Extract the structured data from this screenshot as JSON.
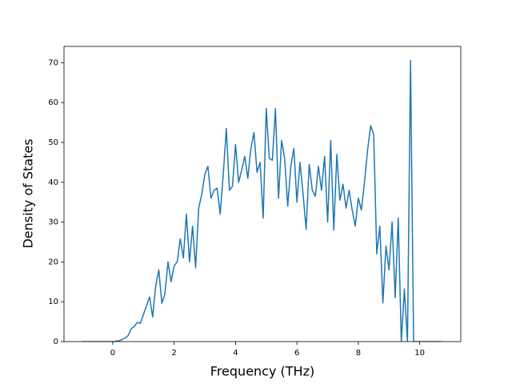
{
  "chart_data": {
    "type": "line",
    "x_label": "Frequency (THz)",
    "y_label": "Density of States",
    "x": [
      -1.0,
      -0.9,
      -0.8,
      -0.7,
      -0.6,
      -0.5,
      -0.4,
      -0.3,
      -0.2,
      -0.1,
      0.0,
      0.1,
      0.2,
      0.3,
      0.4,
      0.5,
      0.6,
      0.7,
      0.8,
      0.9,
      1.0,
      1.1,
      1.2,
      1.3,
      1.4,
      1.5,
      1.6,
      1.7,
      1.8,
      1.9,
      2.0,
      2.1,
      2.2,
      2.3,
      2.4,
      2.5,
      2.6,
      2.7,
      2.8,
      2.9,
      3.0,
      3.1,
      3.2,
      3.3,
      3.4,
      3.5,
      3.6,
      3.7,
      3.8,
      3.9,
      4.0,
      4.1,
      4.2,
      4.3,
      4.4,
      4.5,
      4.6,
      4.7,
      4.8,
      4.9,
      5.0,
      5.1,
      5.2,
      5.3,
      5.4,
      5.5,
      5.6,
      5.7,
      5.8,
      5.9,
      6.0,
      6.1,
      6.2,
      6.3,
      6.4,
      6.5,
      6.6,
      6.7,
      6.8,
      6.9,
      7.0,
      7.1,
      7.2,
      7.3,
      7.4,
      7.5,
      7.6,
      7.7,
      7.8,
      7.9,
      8.0,
      8.1,
      8.2,
      8.3,
      8.4,
      8.5,
      8.6,
      8.7,
      8.8,
      8.9,
      9.0,
      9.1,
      9.2,
      9.3,
      9.4,
      9.5,
      9.6,
      9.7,
      9.8,
      9.9,
      10.0,
      10.1,
      10.2,
      10.3,
      10.4,
      10.5,
      10.6,
      10.7
    ],
    "series": [
      {
        "color": "#1f77b4",
        "values": [
          0,
          0,
          0,
          0,
          0,
          0,
          0,
          0,
          0,
          0,
          0,
          0.1,
          0.2,
          0.5,
          0.9,
          1.5,
          3.2,
          3.8,
          4.8,
          4.6,
          6.8,
          9,
          11.2,
          6.2,
          14,
          18,
          9.6,
          12,
          20,
          15,
          19,
          20,
          25.8,
          21,
          32,
          20,
          29,
          18.5,
          33.5,
          37,
          42,
          44,
          36,
          38,
          38.5,
          32,
          42,
          53.5,
          38,
          39,
          49.5,
          40,
          43,
          46.5,
          41,
          48.5,
          52.5,
          42.5,
          45,
          31,
          58.5,
          46,
          45.5,
          58.5,
          36,
          50.5,
          46,
          34,
          44,
          48.5,
          35,
          45,
          37,
          28.2,
          44.5,
          38,
          36.5,
          44,
          38,
          46.5,
          30,
          50.5,
          28,
          47,
          35.5,
          39.5,
          33.5,
          38,
          33,
          29,
          36,
          33,
          40,
          48,
          54.2,
          52,
          22,
          29,
          9.7,
          24,
          18,
          30,
          11,
          31,
          0,
          13.2,
          0,
          70.6,
          0,
          0,
          0,
          0,
          0,
          0,
          0,
          0,
          0,
          0
        ]
      }
    ],
    "xlim": [
      -1.5875,
      11.3375
    ],
    "ylim": [
      0,
      74.1
    ],
    "xticks": [
      0,
      2,
      4,
      6,
      8,
      10
    ],
    "yticks": [
      0,
      10,
      20,
      30,
      40,
      50,
      60,
      70
    ],
    "grid": false
  }
}
